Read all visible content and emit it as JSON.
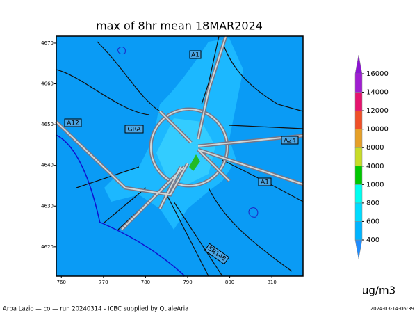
{
  "title": "max of 8hr mean 18MAR2024",
  "map": {
    "xlim": [
      758.8,
      817.4
    ],
    "ylim": [
      4612.8,
      4671.7
    ],
    "xticks": [
      760,
      770,
      780,
      790,
      800,
      810
    ],
    "yticks": [
      4620,
      4630,
      4640,
      4650,
      4660,
      4670
    ],
    "road_labels": [
      "A1",
      "GRA",
      "A12",
      "A24",
      "A1",
      "SR148"
    ]
  },
  "colorbar": {
    "levels": [
      400,
      600,
      800,
      1000,
      4000,
      8000,
      10000,
      12000,
      14000,
      16000
    ],
    "colors": [
      "#1e8cff",
      "#00b4ff",
      "#00dcff",
      "#00fff0",
      "#00c800",
      "#c8dc28",
      "#e6a028",
      "#f05028",
      "#e6146e",
      "#a01ed2",
      "#8c14d2"
    ],
    "unit": "ug/m3"
  },
  "footer": {
    "left": "Arpa Lazio — co — run 20240314 - ICBC supplied by QualeAria",
    "right": "2024-03-14-06:39"
  }
}
